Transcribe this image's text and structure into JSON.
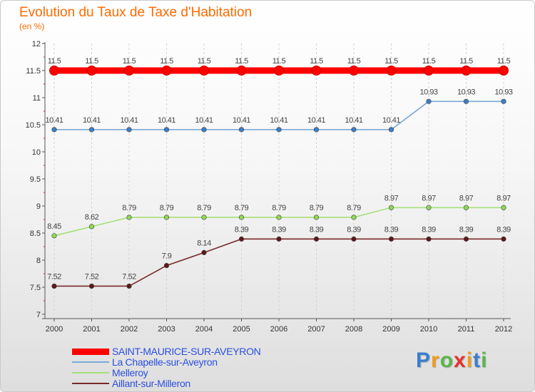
{
  "header": {
    "title": "Evolution du Taux de Taxe d'Habitation",
    "subtitle": "(en %)"
  },
  "chart_data": {
    "type": "line",
    "title": "Evolution du Taux de Taxe d'Habitation",
    "ylabel": "(en %)",
    "xlabel": "",
    "ylim": [
      7,
      12
    ],
    "yticks": [
      "7",
      "7.5",
      "8",
      "8.5",
      "9",
      "9.5",
      "10",
      "10.5",
      "11",
      "11.5",
      "12"
    ],
    "categories": [
      "2000",
      "2001",
      "2002",
      "2003",
      "2004",
      "2005",
      "2006",
      "2007",
      "2008",
      "2009",
      "2010",
      "2011",
      "2012"
    ],
    "grid": "vertical-dashed",
    "legend_position": "bottom-left",
    "series": [
      {
        "name": "SAINT-MAURICE-SUR-AVEYRON",
        "color": "#ff0000",
        "marker": "#ff0000",
        "emphasis": true,
        "values": [
          11.5,
          11.5,
          11.5,
          11.5,
          11.5,
          11.5,
          11.5,
          11.5,
          11.5,
          11.5,
          11.5,
          11.5,
          11.5
        ],
        "labels": [
          "11.5",
          "11.5",
          "11.5",
          "11.5",
          "11.5",
          "11.5",
          "11.5",
          "11.5",
          "11.5",
          "11.5",
          "11.5",
          "11.5",
          "11.5"
        ]
      },
      {
        "name": "La Chapelle-sur-Aveyron",
        "color": "#7aa9d8",
        "marker": "#3d7ec4",
        "emphasis": false,
        "values": [
          10.41,
          10.41,
          10.41,
          10.41,
          10.41,
          10.41,
          10.41,
          10.41,
          10.41,
          10.41,
          10.93,
          10.93,
          10.93
        ],
        "labels": [
          "10.41",
          "10.41",
          "10.41",
          "10.41",
          "10.41",
          "10.41",
          "10.41",
          "10.41",
          "10.41",
          "10.41",
          "10.93",
          "10.93",
          "10.93"
        ]
      },
      {
        "name": "Melleroy",
        "color": "#a6e07a",
        "marker": "#8ed65a",
        "emphasis": false,
        "values": [
          8.45,
          8.62,
          8.79,
          8.79,
          8.79,
          8.79,
          8.79,
          8.79,
          8.79,
          8.97,
          8.97,
          8.97,
          8.97
        ],
        "labels": [
          "8.45",
          "8.62",
          "8.79",
          "8.79",
          "8.79",
          "8.79",
          "8.79",
          "8.79",
          "8.79",
          "8.97",
          "8.97",
          "8.97",
          "8.97"
        ]
      },
      {
        "name": "Aillant-sur-Milleron",
        "color": "#7a2a2a",
        "marker": "#5a1a1a",
        "emphasis": false,
        "values": [
          7.52,
          7.52,
          7.52,
          7.9,
          8.14,
          8.39,
          8.39,
          8.39,
          8.39,
          8.39,
          8.39,
          8.39,
          8.39
        ],
        "labels": [
          "7.52",
          "7.52",
          "7.52",
          "7.9",
          "8.14",
          "8.39",
          "8.39",
          "8.39",
          "8.39",
          "8.39",
          "8.39",
          "8.39",
          "8.39"
        ]
      }
    ]
  },
  "logo": {
    "letters": [
      "P",
      "r",
      "o",
      "x",
      "i",
      "t",
      "i"
    ],
    "colors": [
      "#3a7fd0",
      "#f39a1e",
      "#58b84a",
      "#e8322a",
      "#f39a1e",
      "#3a7fd0",
      "#58b84a"
    ]
  }
}
